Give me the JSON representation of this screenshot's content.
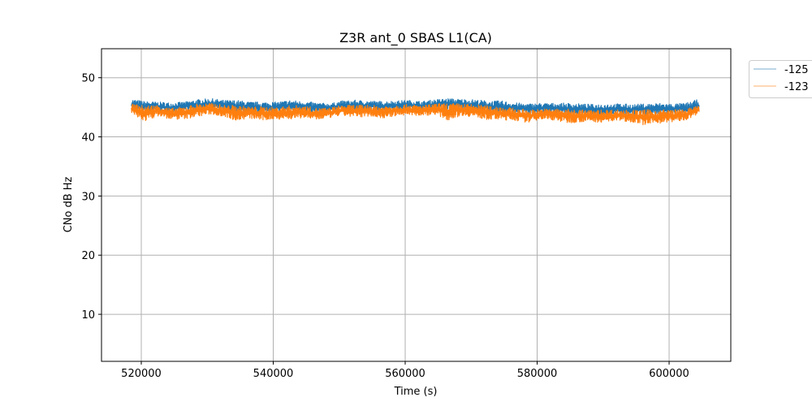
{
  "chart_data": {
    "type": "line",
    "title": "Z3R ant_0 SBAS L1(CA)",
    "xlabel": "Time (s)",
    "ylabel": "CNo dB Hz",
    "xlim": [
      513970,
      609350
    ],
    "ylim": [
      2.05,
      54.9
    ],
    "xticks": [
      520000,
      540000,
      560000,
      580000,
      600000
    ],
    "xtick_labels": [
      "520000",
      "540000",
      "560000",
      "580000",
      "600000"
    ],
    "yticks": [
      10,
      20,
      30,
      40,
      50
    ],
    "ytick_labels": [
      "10",
      "20",
      "30",
      "40",
      "50"
    ],
    "grid": true,
    "legend": {
      "placement": "outside-top-right",
      "entries": [
        "-125",
        "-123"
      ]
    },
    "x": [
      518500,
      520500,
      522500,
      524500,
      526500,
      528500,
      530500,
      532500,
      534500,
      536500,
      538500,
      540500,
      542500,
      544500,
      546500,
      548500,
      550500,
      552500,
      554500,
      556500,
      558500,
      560500,
      562500,
      564500,
      566500,
      568500,
      570500,
      572500,
      574500,
      576500,
      578500,
      580500,
      582500,
      584500,
      586500,
      588500,
      590500,
      592500,
      594500,
      596500,
      598500,
      600500,
      602500,
      604600
    ],
    "series": [
      {
        "name": "-125",
        "color": "#1f77b4",
        "upper": [
          46.4,
          46.0,
          45.9,
          45.8,
          45.9,
          46.3,
          46.5,
          46.2,
          46.2,
          45.9,
          45.9,
          45.9,
          46.2,
          46.0,
          45.8,
          45.6,
          46.1,
          46.2,
          46.1,
          46.0,
          46.1,
          46.2,
          46.0,
          46.3,
          46.5,
          46.4,
          46.3,
          46.1,
          46.1,
          45.8,
          45.6,
          45.7,
          45.7,
          45.7,
          45.6,
          45.5,
          45.6,
          45.6,
          45.5,
          45.6,
          45.7,
          45.6,
          45.7,
          46.4
        ],
        "lower": [
          44.4,
          44.3,
          44.4,
          44.0,
          44.5,
          44.5,
          44.6,
          44.4,
          44.0,
          44.3,
          44.0,
          44.2,
          44.3,
          44.3,
          44.0,
          44.3,
          44.5,
          44.4,
          44.4,
          44.3,
          44.6,
          44.6,
          44.5,
          44.7,
          44.7,
          44.6,
          44.5,
          44.1,
          44.0,
          44.0,
          43.8,
          44.0,
          44.0,
          43.8,
          43.8,
          43.7,
          43.7,
          43.8,
          43.7,
          43.7,
          43.8,
          43.8,
          43.9,
          44.2
        ]
      },
      {
        "name": "-123",
        "color": "#ff7f0e",
        "upper": [
          45.6,
          45.3,
          45.4,
          44.8,
          45.1,
          45.6,
          45.7,
          45.4,
          45.3,
          45.1,
          45.1,
          45.0,
          45.3,
          45.3,
          44.9,
          44.9,
          45.4,
          45.4,
          45.4,
          45.2,
          45.4,
          45.5,
          45.3,
          45.6,
          45.7,
          45.6,
          45.5,
          45.3,
          45.2,
          44.8,
          44.6,
          44.7,
          44.8,
          44.7,
          44.6,
          44.5,
          44.6,
          44.6,
          44.5,
          44.6,
          44.6,
          44.6,
          44.7,
          45.3
        ],
        "lower": [
          43.8,
          42.6,
          43.5,
          42.9,
          43.0,
          43.4,
          43.8,
          43.4,
          42.7,
          43.1,
          42.7,
          43.0,
          42.9,
          43.2,
          42.8,
          43.2,
          43.6,
          43.2,
          43.5,
          43.1,
          43.5,
          43.7,
          43.5,
          43.8,
          42.8,
          43.6,
          43.3,
          42.9,
          42.8,
          42.8,
          42.4,
          43.0,
          42.8,
          42.3,
          42.5,
          42.5,
          42.4,
          42.7,
          42.5,
          41.9,
          42.3,
          42.5,
          42.7,
          44.0
        ]
      }
    ]
  }
}
